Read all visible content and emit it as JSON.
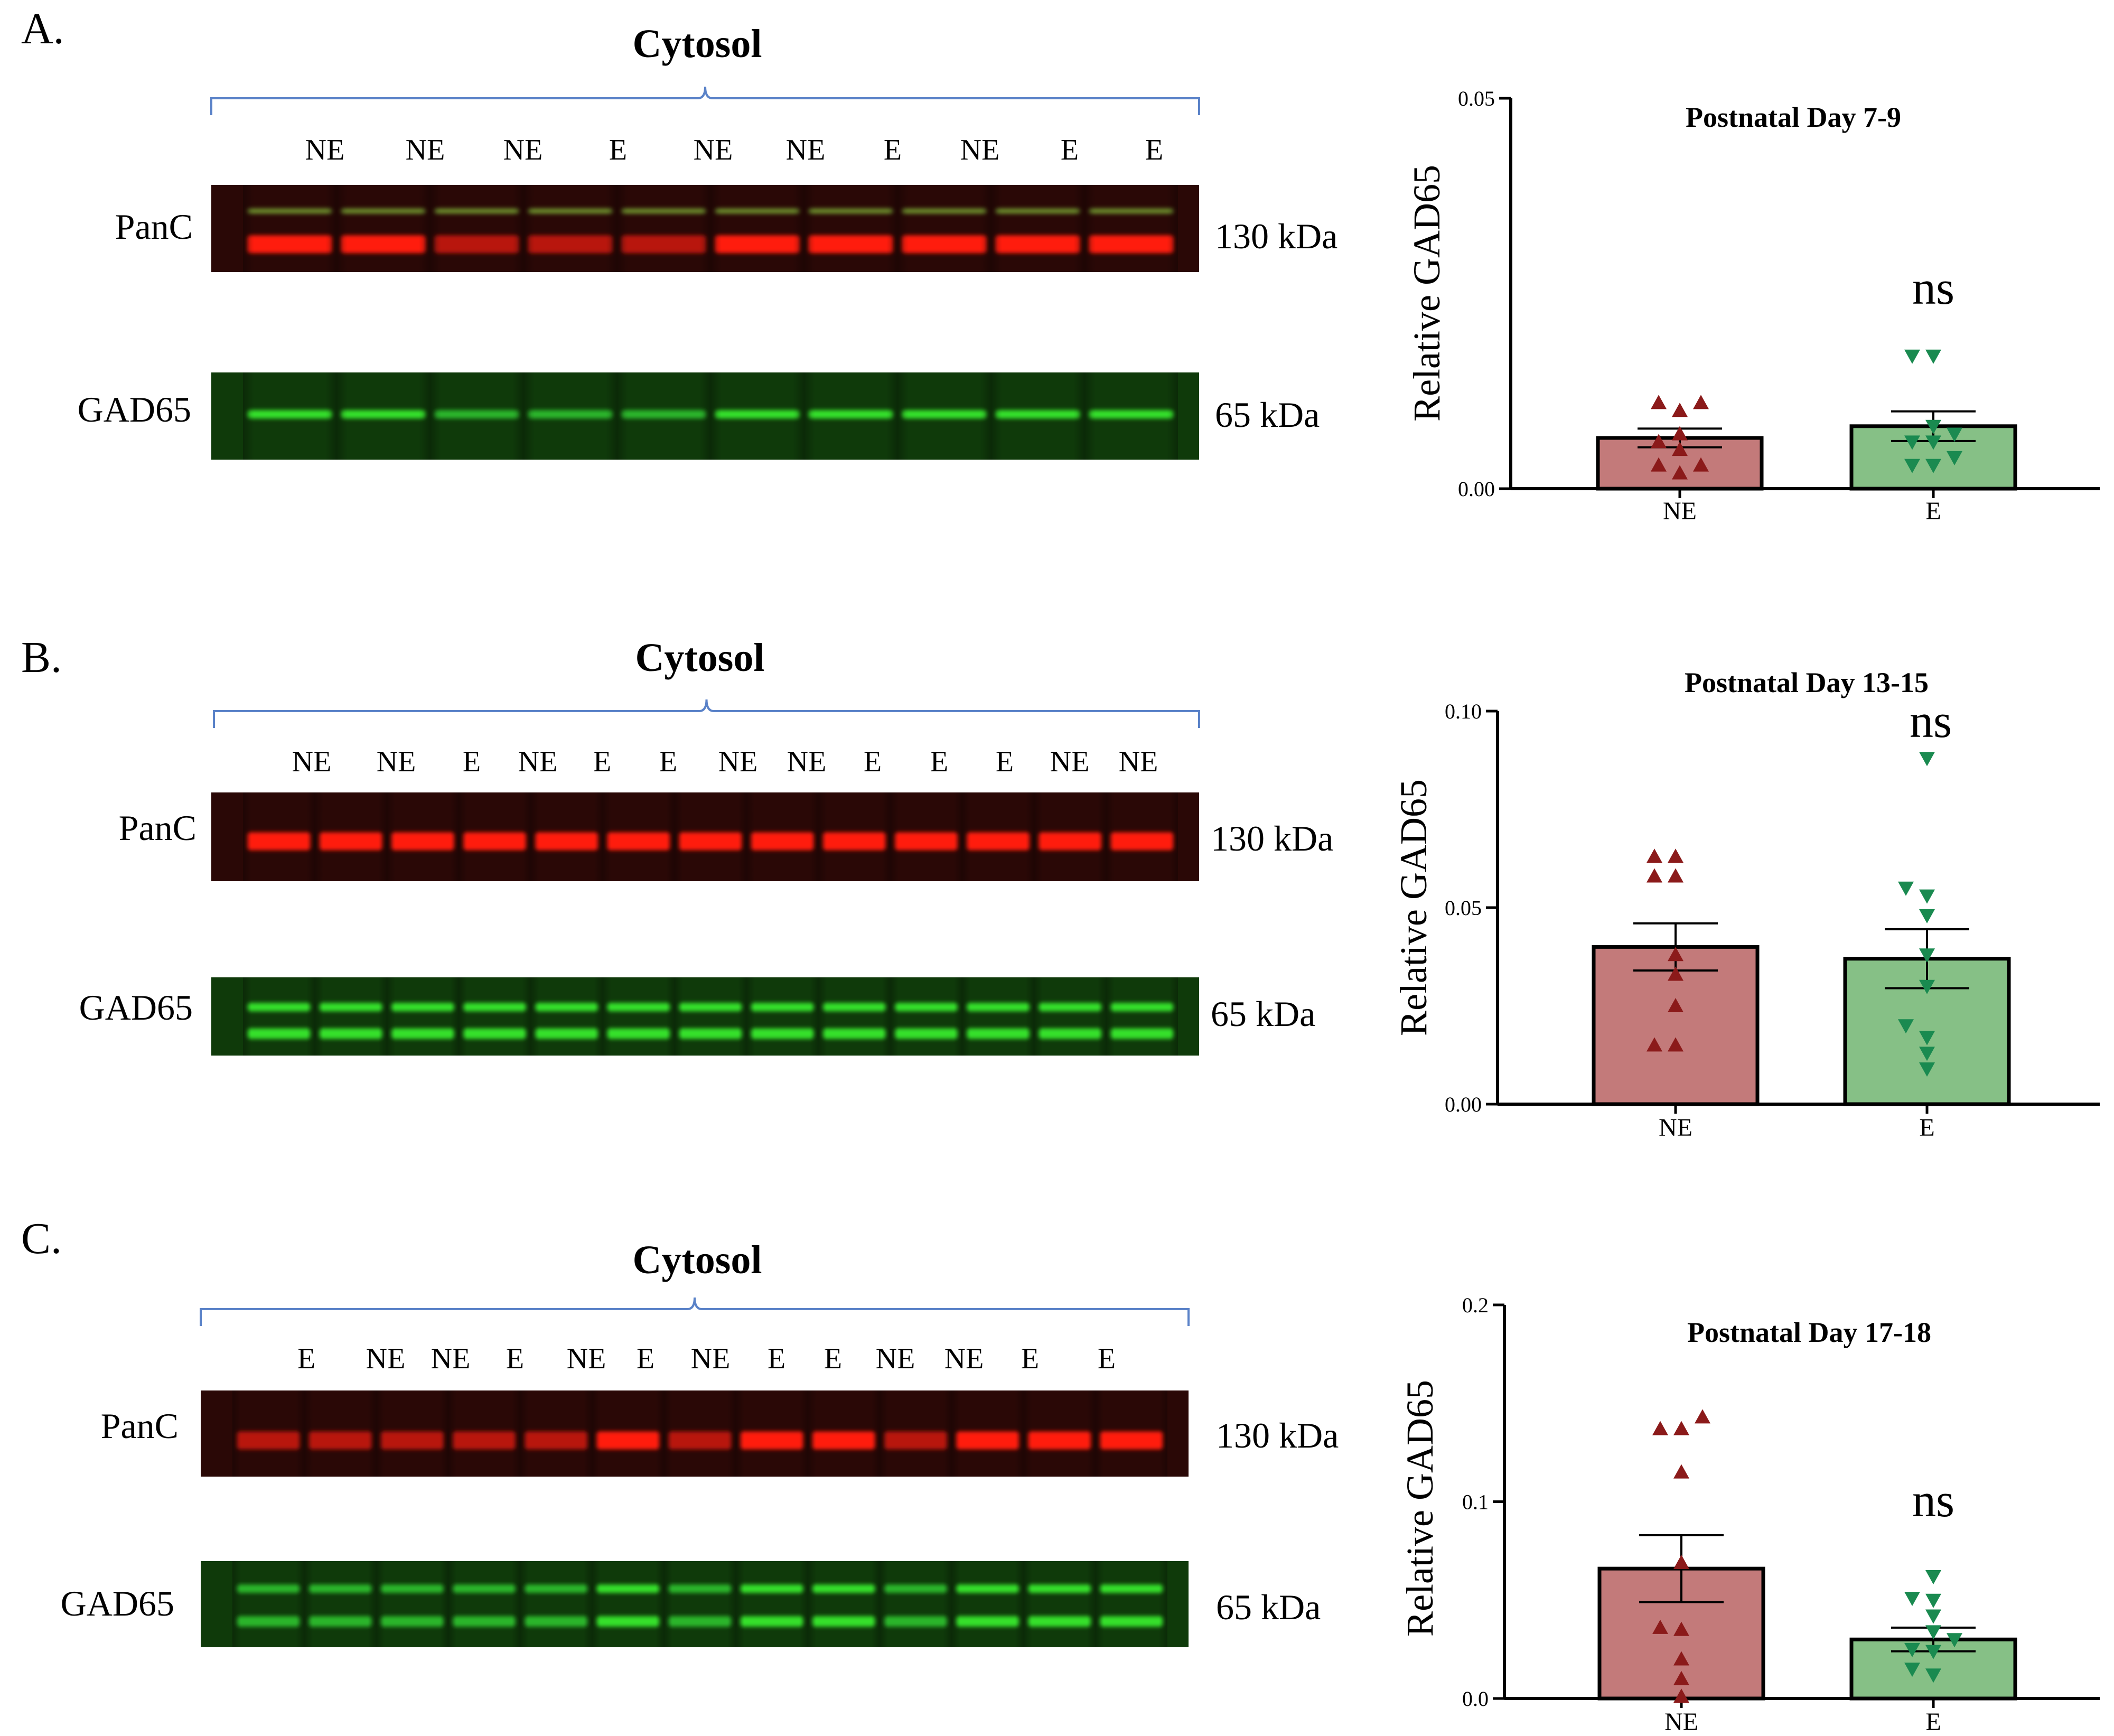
{
  "panels": [
    {
      "letter": "A.",
      "fraction_label": "Cytosol",
      "lanes": [
        "NE",
        "NE",
        "NE",
        "E",
        "NE",
        "NE",
        "E",
        "NE",
        "E",
        "E"
      ],
      "lane_pattern_strong": [
        1,
        1,
        0,
        0,
        0,
        1,
        1,
        1,
        1,
        1
      ],
      "blots": [
        {
          "protein": "PanC",
          "kda": "130 kDa",
          "channel": "red"
        },
        {
          "protein": "GAD65",
          "kda": "65 kDa",
          "channel": "green"
        }
      ],
      "chart": {
        "title": "Postnatal Day 7-9",
        "ylabel": "Relative GAD65",
        "ylim": [
          0,
          0.05
        ],
        "yticks": [
          "0.00",
          "0.05"
        ],
        "ytick_values": [
          0,
          0.05
        ],
        "significance": "ns"
      }
    },
    {
      "letter": "B.",
      "fraction_label": "Cytosol",
      "lanes": [
        "NE",
        "NE",
        "E",
        "NE",
        "E",
        "E",
        "NE",
        "NE",
        "E",
        "E",
        "E",
        "NE",
        "NE"
      ],
      "lane_pattern_strong": [
        1,
        1,
        1,
        1,
        1,
        1,
        1,
        1,
        1,
        1,
        1,
        1,
        1
      ],
      "blots": [
        {
          "protein": "PanC",
          "kda": "130 kDa",
          "channel": "red"
        },
        {
          "protein": "GAD65",
          "kda": "65 kDa",
          "channel": "green"
        }
      ],
      "chart": {
        "title": "Postnatal Day 13-15",
        "ylabel": "Relative GAD65",
        "ylim": [
          0,
          0.1
        ],
        "yticks": [
          "0.00",
          "0.05",
          "0.10"
        ],
        "ytick_values": [
          0,
          0.05,
          0.1
        ],
        "significance": "ns"
      }
    },
    {
      "letter": "C.",
      "fraction_label": "Cytosol",
      "lanes": [
        "E",
        "NE",
        "NE",
        "E",
        "NE",
        "E",
        "NE",
        "E",
        "E",
        "NE",
        "NE",
        "E",
        "E"
      ],
      "lane_pattern_strong": [
        0,
        0,
        0,
        0,
        0,
        1,
        0,
        1,
        1,
        0,
        1,
        1,
        1
      ],
      "blots": [
        {
          "protein": "PanC",
          "kda": "130 kDa",
          "channel": "red"
        },
        {
          "protein": "GAD65",
          "kda": "65 kDa",
          "channel": "green"
        }
      ],
      "chart": {
        "title": "Postnatal Day 17-18",
        "ylabel": "Relative GAD65",
        "ylim": [
          0,
          0.2
        ],
        "yticks": [
          "0.0",
          "0.1",
          "0.2"
        ],
        "ytick_values": [
          0,
          0.1,
          0.2
        ],
        "significance": "ns"
      }
    }
  ],
  "chart_data": [
    {
      "type": "bar",
      "title": "Postnatal Day 7-9",
      "ylabel": "Relative GAD65",
      "xlabel": "",
      "ylim": [
        0,
        0.05
      ],
      "categories": [
        "NE",
        "E"
      ],
      "values": [
        0.0065,
        0.008
      ],
      "sem": [
        0.0012,
        0.0019
      ],
      "points": [
        [
          0.002,
          0.003,
          0.003,
          0.005,
          0.006,
          0.007,
          0.01,
          0.011,
          0.011
        ],
        [
          0.003,
          0.003,
          0.004,
          0.006,
          0.006,
          0.007,
          0.008,
          0.017,
          0.017
        ]
      ],
      "colors": [
        "#c37a7a",
        "#86c086"
      ],
      "marker_colors": [
        "#8b1a1a",
        "#1a8a50"
      ],
      "annotation": "ns"
    },
    {
      "type": "bar",
      "title": "Postnatal Day 13-15",
      "ylabel": "Relative GAD65",
      "xlabel": "",
      "ylim": [
        0,
        0.1
      ],
      "categories": [
        "NE",
        "E"
      ],
      "values": [
        0.04,
        0.037
      ],
      "sem": [
        0.006,
        0.0075
      ],
      "points": [
        [
          0.015,
          0.015,
          0.025,
          0.033,
          0.038,
          0.058,
          0.058,
          0.063,
          0.063
        ],
        [
          0.009,
          0.013,
          0.017,
          0.02,
          0.03,
          0.038,
          0.048,
          0.053,
          0.055,
          0.088
        ]
      ],
      "colors": [
        "#c37a7a",
        "#86c086"
      ],
      "marker_colors": [
        "#8b1a1a",
        "#1a8a50"
      ],
      "annotation": "ns"
    },
    {
      "type": "bar",
      "title": "Postnatal Day 17-18",
      "ylabel": "Relative GAD65",
      "xlabel": "",
      "ylim": [
        0,
        0.2
      ],
      "categories": [
        "NE",
        "E"
      ],
      "values": [
        0.066,
        0.03
      ],
      "sem": [
        0.017,
        0.006
      ],
      "points": [
        [
          0.001,
          0.01,
          0.02,
          0.035,
          0.036,
          0.069,
          0.115,
          0.137,
          0.137,
          0.143
        ],
        [
          0.012,
          0.015,
          0.024,
          0.025,
          0.03,
          0.034,
          0.042,
          0.05,
          0.051,
          0.062
        ]
      ],
      "colors": [
        "#c37a7a",
        "#86c086"
      ],
      "marker_colors": [
        "#8b1a1a",
        "#1a8a50"
      ],
      "annotation": "ns"
    }
  ]
}
